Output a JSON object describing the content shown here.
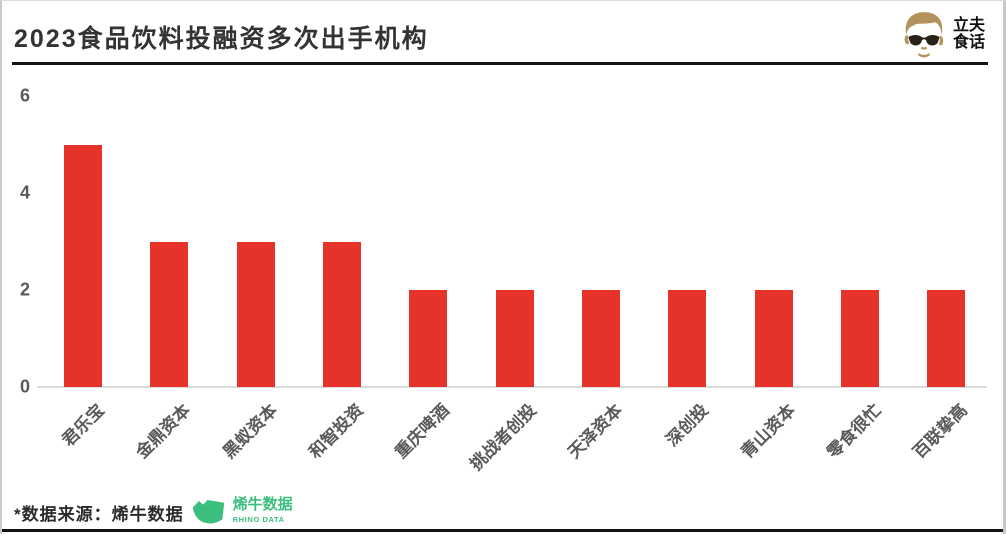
{
  "page": {
    "title": "2023食品饮料投融资多次出手机构",
    "brand": {
      "line1": "立夫",
      "line2": "食话"
    }
  },
  "chart_data": {
    "type": "bar",
    "title": "2023食品饮料投融资多次出手机构",
    "categories": [
      "君乐宝",
      "金鼎资本",
      "黑蚁资本",
      "和智投资",
      "重庆啤酒",
      "挑战者创投",
      "天泽资本",
      "深创投",
      "青山资本",
      "零食很忙",
      "百联挚高"
    ],
    "values": [
      5,
      3,
      3,
      3,
      2,
      2,
      2,
      2,
      2,
      2,
      2
    ],
    "xlabel": "",
    "ylabel": "",
    "ylim": [
      0,
      6
    ],
    "yticks": [
      0,
      2,
      4,
      6
    ],
    "grid": false,
    "legend": "none",
    "bar_color": "#e5332a",
    "axis_text_color": "#595959"
  },
  "footer": {
    "source_text": "*数据来源：烯牛数据",
    "logo_text_cn": "烯牛数据",
    "logo_text_en": "RHINO DATA",
    "logo_color": "#3cbe7e"
  },
  "colors": {
    "bar_red": "#e5332a",
    "rhino_green": "#3cbe7e",
    "face_tan": "#b3925c",
    "rule_black": "#131313",
    "baseline_gray": "#dcdcdc"
  }
}
